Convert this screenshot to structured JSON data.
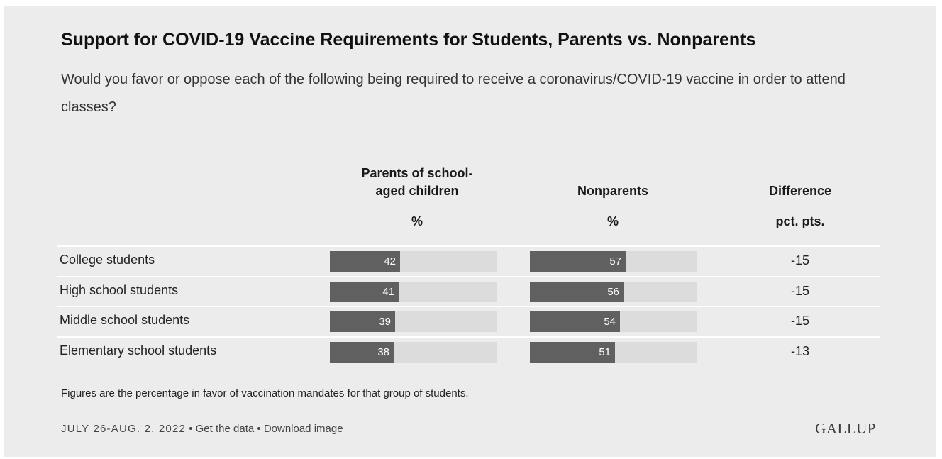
{
  "title": "Support for COVID-19 Vaccine Requirements for Students, Parents vs. Nonparents",
  "subtitle": "Would you favor or oppose each of the following being required to receive a coronavirus/COVID-19 vaccine in order to attend classes?",
  "columns": {
    "parents": {
      "header_line1": "Parents of school-",
      "header_line2": "aged children",
      "unit": "%"
    },
    "nonparents": {
      "header": "Nonparents",
      "unit": "%"
    },
    "difference": {
      "header": "Difference",
      "unit": "pct. pts."
    }
  },
  "chart_data": {
    "type": "bar",
    "categories": [
      "College students",
      "High school students",
      "Middle school students",
      "Elementary school students"
    ],
    "series": [
      {
        "name": "Parents of school-aged children",
        "values": [
          42,
          41,
          39,
          38
        ]
      },
      {
        "name": "Nonparents",
        "values": [
          57,
          56,
          54,
          51
        ]
      }
    ],
    "difference": [
      "-15",
      "-15",
      "-15",
      "-13"
    ],
    "ylim": [
      0,
      100
    ],
    "colors": {
      "bar": "#606060",
      "track": "#dcdcdc"
    }
  },
  "footnote": "Figures are the percentage in favor of vaccination mandates for that group of students.",
  "footer": {
    "date": "JULY 26-AUG. 2, 2022",
    "separator": "•",
    "get_data": "Get the data",
    "download": "Download image"
  },
  "logo": "GALLUP"
}
